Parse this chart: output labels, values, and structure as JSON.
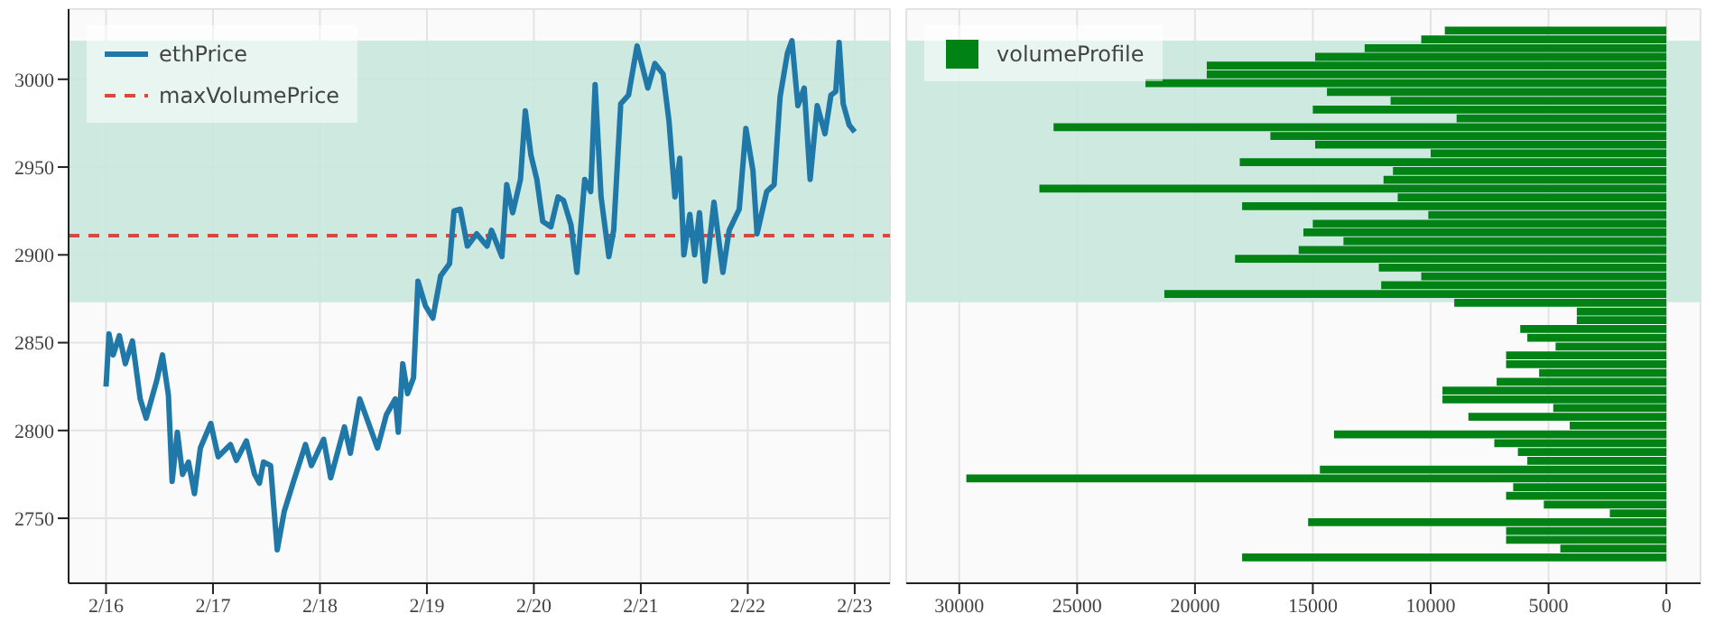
{
  "chart_data": [
    {
      "type": "line",
      "x": [
        "--02-16T00:00",
        "--02-16T00:40",
        "--02-16T01:36",
        "--02-16T03:00",
        "--02-16T04:20",
        "--02-16T05:55",
        "--02-16T07:40",
        "--02-16T09:00",
        "--02-16T11:20",
        "--02-16T12:40",
        "--02-16T14:00",
        "--02-16T14:50",
        "--02-16T16:00",
        "--02-16T17:10",
        "--02-16T18:30",
        "--02-16T19:50",
        "--02-16T21:10",
        "--02-16T23:30",
        "--02-17T01:10",
        "--02-17T03:55",
        "--02-17T05:15",
        "--02-17T07:30",
        "--02-17T09:20",
        "--02-17T10:25",
        "--02-17T11:20",
        "--02-17T12:55",
        "--02-17T14:25",
        "--02-17T16:00",
        "--02-17T18:05",
        "--02-17T20:45",
        "--02-17T22:05",
        "--02-18T00:50",
        "--02-18T02:25",
        "--02-18T05:30",
        "--02-18T06:50",
        "--02-18T08:55",
        "--02-18T10:30",
        "--02-18T12:55",
        "--02-18T14:55",
        "--02-18T16:55",
        "--02-18T17:35",
        "--02-18T18:35",
        "--02-18T19:40",
        "--02-18T21:00",
        "--02-18T22:00",
        "--02-18T23:40",
        "--02-19T01:20",
        "--02-19T03:05",
        "--02-19T05:05",
        "--02-19T06:05",
        "--02-19T07:30",
        "--02-19T09:05",
        "--02-19T11:10",
        "--02-19T13:30",
        "--02-19T14:30",
        "--02-19T16:50",
        "--02-19T17:55",
        "--02-19T19:15",
        "--02-19T21:00",
        "--02-19T22:05",
        "--02-19T23:20",
        "--02-20T00:40",
        "--02-20T02:00",
        "--02-20T03:50",
        "--02-20T05:25",
        "--02-20T06:40",
        "--02-20T08:20",
        "--02-20T09:40",
        "--02-20T11:25",
        "--02-20T12:45",
        "--02-20T13:45",
        "--02-20T15:05",
        "--02-20T16:50",
        "--02-20T17:55",
        "--02-20T19:30",
        "--02-20T21:15",
        "--02-20T23:10",
        "--02-21T01:35",
        "--02-21T03:10",
        "--02-21T05:00",
        "--02-21T06:20",
        "--02-21T07:40",
        "--02-21T08:45",
        "--02-21T09:40",
        "--02-21T11:00",
        "--02-21T12:05",
        "--02-21T13:10",
        "--02-21T14:25",
        "--02-21T16:25",
        "--02-21T18:25",
        "--02-21T19:50",
        "--02-21T22:05",
        "--02-21T23:35",
        "--02-22T01:10",
        "--02-22T02:05",
        "--02-22T04:15",
        "--02-22T05:55",
        "--02-22T07:15",
        "--02-22T08:55",
        "--02-22T09:55",
        "--02-22T11:15",
        "--02-22T12:40",
        "--02-22T14:00",
        "--02-22T15:35",
        "--02-22T17:20",
        "--02-22T18:40",
        "--02-22T19:45",
        "--02-22T20:30",
        "--02-22T21:25",
        "--02-22T22:45",
        "--02-23T00:00"
      ],
      "series": [
        {
          "name": "ethPrice",
          "color": "#1f78a8",
          "values": [
            2825,
            2855,
            2843,
            2854,
            2838,
            2851,
            2818,
            2807,
            2828,
            2843,
            2820,
            2771,
            2799,
            2775,
            2782,
            2764,
            2790,
            2804,
            2785,
            2792,
            2783,
            2794,
            2775,
            2770,
            2782,
            2780,
            2732,
            2754,
            2771,
            2792,
            2780,
            2795,
            2773,
            2802,
            2787,
            2818,
            2807,
            2790,
            2809,
            2818,
            2799,
            2838,
            2821,
            2830,
            2885,
            2871,
            2864,
            2888,
            2895,
            2925,
            2926,
            2905,
            2912,
            2905,
            2914,
            2899,
            2940,
            2924,
            2943,
            2982,
            2957,
            2943,
            2919,
            2916,
            2933,
            2931,
            2917,
            2890,
            2943,
            2936,
            2997,
            2933,
            2899,
            2914,
            2986,
            2991,
            3019,
            2995,
            3009,
            3003,
            2976,
            2933,
            2955,
            2900,
            2923,
            2900,
            2924,
            2885,
            2930,
            2890,
            2914,
            2926,
            2972,
            2948,
            2912,
            2936,
            2940,
            2990,
            3015,
            3022,
            2985,
            2995,
            2943,
            2985,
            2969,
            2991,
            2993,
            3021,
            2986,
            2974,
            2970
          ]
        }
      ],
      "ref_lines": [
        {
          "axis": "y",
          "value": 2911,
          "label": "maxVolumePrice",
          "color": "#d9473f",
          "line_style": "dashed"
        }
      ],
      "bands": [
        {
          "axis": "y",
          "from": 2873,
          "to": 3022,
          "color": "#c8e7dd"
        }
      ],
      "xlim": [
        "--02-15T15:36",
        "--02-23T07:55"
      ],
      "xticks": [
        {
          "value": "--02-16",
          "label": "2/16"
        },
        {
          "value": "--02-17",
          "label": "2/17"
        },
        {
          "value": "--02-18",
          "label": "2/18"
        },
        {
          "value": "--02-19",
          "label": "2/19"
        },
        {
          "value": "--02-20",
          "label": "2/20"
        },
        {
          "value": "--02-21",
          "label": "2/21"
        },
        {
          "value": "--02-22",
          "label": "2/22"
        },
        {
          "value": "--02-23",
          "label": "2/23"
        }
      ],
      "ylim": [
        2713,
        3040
      ],
      "yticks": [
        2750,
        2800,
        2850,
        2900,
        2950,
        3000
      ],
      "grid": true,
      "legend": "top left",
      "marker": "none",
      "line_style": "solid"
    },
    {
      "type": "bar",
      "orientation": "horizontal",
      "series": [
        {
          "name": "volumeProfile",
          "color": "#008214",
          "x": [
            3027.5,
            3022.5,
            3017.5,
            3012.5,
            3007.5,
            3002.5,
            2997.5,
            2992.5,
            2987.5,
            2982.5,
            2977.5,
            2972.5,
            2967.5,
            2962.5,
            2957.5,
            2952.5,
            2947.5,
            2942.5,
            2937.5,
            2932.5,
            2927.5,
            2922.5,
            2917.5,
            2912.5,
            2907.5,
            2902.5,
            2897.5,
            2892.5,
            2887.5,
            2882.5,
            2877.5,
            2872.5,
            2867.5,
            2862.5,
            2857.5,
            2852.5,
            2847.5,
            2842.5,
            2837.5,
            2832.5,
            2827.5,
            2822.5,
            2817.5,
            2812.5,
            2807.5,
            2802.5,
            2797.5,
            2792.5,
            2787.5,
            2782.5,
            2777.5,
            2772.5,
            2767.5,
            2762.5,
            2757.5,
            2752.5,
            2747.5,
            2742.5,
            2737.5,
            2732.5,
            2727.5
          ],
          "values": [
            9400,
            10400,
            12800,
            14900,
            19500,
            19500,
            22100,
            14400,
            11700,
            15000,
            8900,
            26000,
            16800,
            14900,
            10000,
            18100,
            11600,
            12000,
            26600,
            11400,
            18000,
            10100,
            15000,
            15400,
            13700,
            15600,
            18300,
            12200,
            10400,
            12100,
            21300,
            9000,
            3800,
            3800,
            6200,
            5900,
            4700,
            6800,
            6800,
            5400,
            7200,
            9500,
            9500,
            4800,
            8400,
            4100,
            14100,
            7300,
            6300,
            5900,
            14700,
            29700,
            6500,
            6800,
            5200,
            2400,
            15200,
            6800,
            6800,
            4500,
            18000
          ]
        }
      ],
      "bands": [
        {
          "axis": "y",
          "from": 2873,
          "to": 3022,
          "color": "#c8e7dd"
        }
      ],
      "xlim": [
        32250,
        -1450
      ],
      "xticks": [
        30000,
        25000,
        20000,
        15000,
        10000,
        5000,
        0
      ],
      "ylim": [
        2713,
        3040
      ],
      "yticks": [
        2750,
        2800,
        2850,
        2900,
        2950,
        3000
      ],
      "tick_labels": "x",
      "grid": true,
      "legend": "top left"
    }
  ]
}
